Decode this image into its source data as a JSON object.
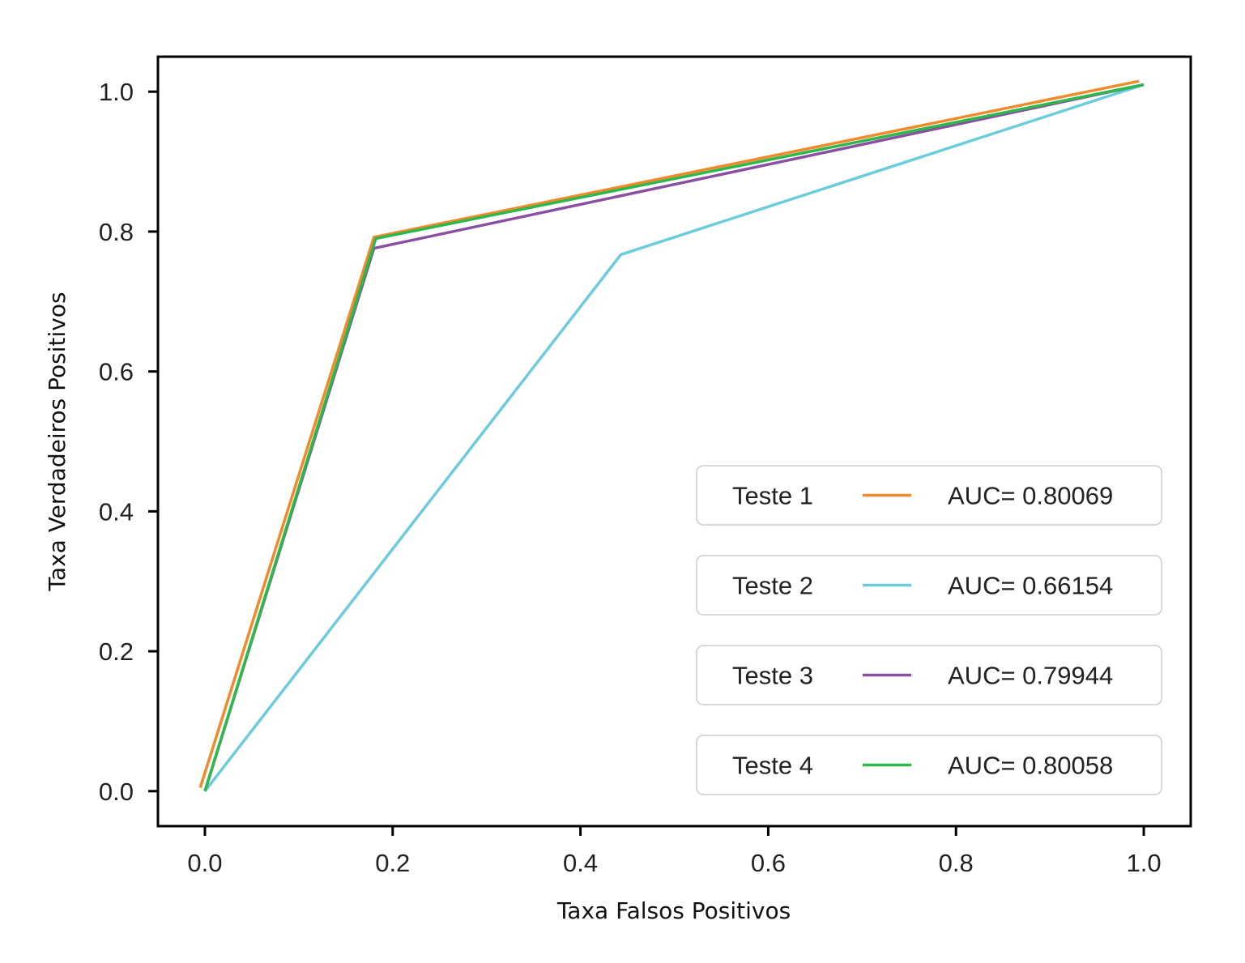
{
  "chart_data": {
    "type": "line",
    "xlabel": "Taxa Falsos Positivos",
    "ylabel": "Taxa Verdadeiros Positivos",
    "xlim": [
      -0.05,
      1.05
    ],
    "ylim": [
      -0.05,
      1.05
    ],
    "xticks": [
      0.0,
      0.2,
      0.4,
      0.6,
      0.8,
      1.0
    ],
    "yticks": [
      0.0,
      0.2,
      0.4,
      0.6,
      0.8,
      1.0
    ],
    "xtick_labels": [
      "0.0",
      "0.2",
      "0.4",
      "0.6",
      "0.8",
      "1.0"
    ],
    "ytick_labels": [
      "0.0",
      "0.2",
      "0.4",
      "0.6",
      "0.8",
      "1.0"
    ],
    "grid": false,
    "legend_position": "lower-right",
    "series": [
      {
        "name": "Teste 1",
        "auc_label": "AUC= 0.80069",
        "color": "#f08a2c",
        "x": [
          -0.005,
          0.18,
          0.995
        ],
        "y": [
          0.005,
          0.792,
          1.015
        ]
      },
      {
        "name": "Teste 2",
        "auc_label": "AUC= 0.66154",
        "color": "#6bccdc",
        "x": [
          0.0,
          0.443,
          1.0
        ],
        "y": [
          0.0,
          0.767,
          1.01
        ]
      },
      {
        "name": "Teste 3",
        "auc_label": "AUC= 0.79944",
        "color": "#8a4fa0",
        "x": [
          0.0,
          0.18,
          1.0
        ],
        "y": [
          0.0,
          0.776,
          1.01
        ]
      },
      {
        "name": "Teste 4",
        "auc_label": "AUC= 0.80058",
        "color": "#2db84c",
        "x": [
          0.0,
          0.182,
          1.0
        ],
        "y": [
          0.0,
          0.79,
          1.01
        ]
      }
    ]
  }
}
